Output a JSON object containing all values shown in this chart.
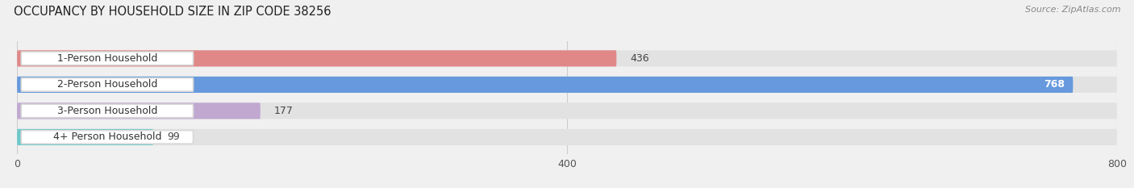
{
  "title": "OCCUPANCY BY HOUSEHOLD SIZE IN ZIP CODE 38256",
  "source": "Source: ZipAtlas.com",
  "categories": [
    "1-Person Household",
    "2-Person Household",
    "3-Person Household",
    "4+ Person Household"
  ],
  "values": [
    436,
    768,
    177,
    99
  ],
  "bar_colors": [
    "#e08888",
    "#6699dd",
    "#c0a8d0",
    "#6ec8c8"
  ],
  "value_label_colors": [
    "#555555",
    "#ffffff",
    "#555555",
    "#555555"
  ],
  "background_color": "#f0f0f0",
  "bar_bg_color": "#e2e2e2",
  "xlim": [
    0,
    800
  ],
  "xticks": [
    0,
    400,
    800
  ],
  "bar_height": 0.62,
  "figsize": [
    14.06,
    2.33
  ],
  "dpi": 100
}
